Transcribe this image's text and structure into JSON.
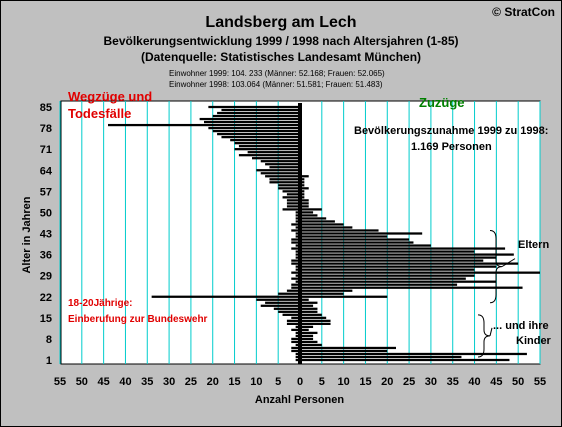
{
  "copyright": "© StratCon",
  "header": {
    "title": "Landsberg am Lech",
    "subtitle": "Bevölkerungsentwicklung 1999 / 1998  nach Altersjahren (1-85)",
    "source": "(Datenquelle: Statistisches Landesamt München)",
    "line_1999": "Einwohner 1999: 104. 233  (Männer: 52.168; Frauen: 52.065)",
    "line_1998": "Einwohner 1998:  103.064  (Männer: 51.581; Frauen: 51.483)"
  },
  "annotations": {
    "left_title_1": "Wegzüge und",
    "left_title_2": "Todesfälle",
    "right_title": "Zuzüge",
    "increase_1": "Bevölkerungszunahme 1999 zu 1998:",
    "increase_2": "1.169 Personen",
    "eltern": "Eltern",
    "kinder_1": "... und ihre",
    "kinder_2": "Kinder",
    "young_1": "18-20Jährige:",
    "young_2": "Einberufung zur Bundeswehr"
  },
  "colors": {
    "background": "#c0c0c0",
    "plot": "#ffffff",
    "gridline": "#00cccc",
    "bars": "#000000",
    "left_label": "#e00000",
    "right_label": "#008000"
  },
  "chart_data": {
    "type": "bar",
    "orientation": "horizontal",
    "xlabel": "Anzahl Personen",
    "ylabel": "Alter in Jahren",
    "xlim": [
      -55,
      55
    ],
    "ylim": [
      1,
      85
    ],
    "x_ticks": [
      -55,
      -50,
      -45,
      -40,
      -35,
      -30,
      -25,
      -20,
      -15,
      -10,
      -5,
      0,
      5,
      10,
      15,
      20,
      25,
      30,
      35,
      40,
      45,
      50,
      55
    ],
    "x_tick_labels": [
      "55",
      "50",
      "45",
      "40",
      "35",
      "30",
      "25",
      "20",
      "15",
      "10",
      "5",
      "0",
      "5",
      "10",
      "15",
      "20",
      "25",
      "30",
      "35",
      "40",
      "45",
      "50",
      "55"
    ],
    "y_ticks": [
      1,
      8,
      15,
      22,
      29,
      36,
      43,
      50,
      57,
      64,
      71,
      78,
      85
    ],
    "grid": true,
    "ages": [
      1,
      2,
      3,
      4,
      5,
      6,
      7,
      8,
      9,
      10,
      11,
      12,
      13,
      14,
      15,
      16,
      17,
      18,
      19,
      20,
      21,
      22,
      23,
      24,
      25,
      26,
      27,
      28,
      29,
      30,
      31,
      32,
      33,
      34,
      35,
      36,
      37,
      38,
      39,
      40,
      41,
      42,
      43,
      44,
      45,
      46,
      47,
      48,
      49,
      50,
      51,
      52,
      53,
      54,
      55,
      56,
      57,
      58,
      59,
      60,
      61,
      62,
      63,
      64,
      65,
      66,
      67,
      68,
      69,
      70,
      71,
      72,
      73,
      74,
      75,
      76,
      77,
      78,
      79,
      80,
      81,
      82,
      83,
      84,
      85
    ],
    "series": [
      {
        "values": [
          -1,
          -1,
          -1,
          -2,
          -2,
          -1,
          -2,
          -2,
          -1,
          -1,
          -2,
          -1,
          -3,
          -3,
          -2,
          -4,
          -5,
          -6,
          -9,
          -8,
          -10,
          -34,
          -5,
          -3,
          -2,
          -2,
          -1,
          -2,
          -1,
          -2,
          -1,
          -1,
          -2,
          -2,
          -1,
          -1,
          -1,
          -2,
          -1,
          -2,
          -2,
          -1,
          -1,
          -2,
          -1,
          -2,
          -1,
          -1,
          -1,
          -1,
          -4,
          -3,
          -3,
          -3,
          -4,
          -3,
          -4,
          -5,
          -5,
          -7,
          -7,
          -8,
          -9,
          -10,
          -7,
          -8,
          -9,
          -11,
          -14,
          -12,
          -15,
          -14,
          -15,
          -16,
          -18,
          -19,
          -20,
          -21,
          -44,
          -22,
          -23,
          -20,
          -19,
          -18,
          -21
        ]
      },
      {
        "values": [
          48,
          37,
          52,
          20,
          22,
          5,
          4,
          3,
          3,
          4,
          2,
          3,
          7,
          7,
          6,
          5,
          4,
          4,
          3,
          4,
          2,
          20,
          10,
          12,
          51,
          36,
          45,
          38,
          40,
          55,
          40,
          45,
          50,
          42,
          45,
          49,
          40,
          47,
          30,
          26,
          25,
          20,
          28,
          18,
          12,
          10,
          8,
          6,
          4,
          3,
          5,
          2,
          2,
          2,
          1,
          1,
          1,
          2,
          1,
          1,
          1,
          2,
          0,
          0,
          0,
          0,
          0,
          0,
          0,
          0,
          0,
          0,
          0,
          0,
          0,
          0,
          0,
          0,
          0,
          0,
          0,
          0,
          0,
          0,
          0
        ]
      }
    ]
  }
}
